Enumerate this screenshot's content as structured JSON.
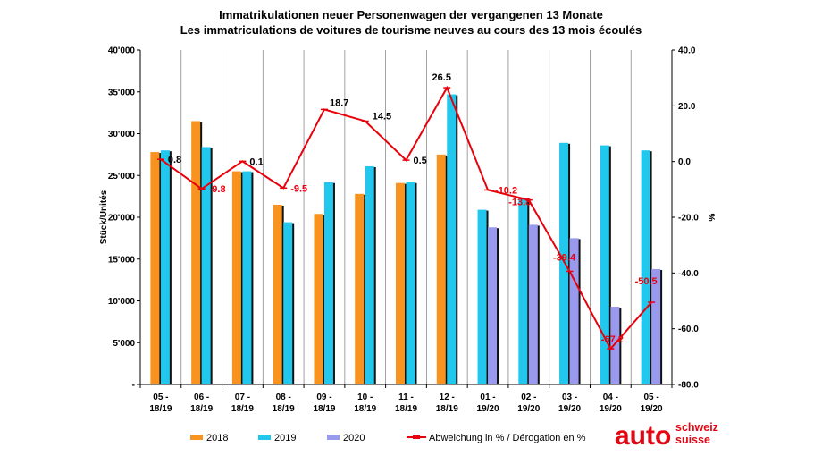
{
  "chart_data": {
    "type": "bar",
    "title": "Immatrikulationen neuer Personenwagen der vergangenen 13 Monate",
    "subtitle": "Les immatriculations de voitures de tourisme neuves au cours des 13 mois écoulés",
    "ylabel": "Stück/Unités",
    "y2label": "%",
    "ylim": [
      0,
      40000
    ],
    "y2lim": [
      -80,
      40
    ],
    "yticks": [
      "-",
      "5'000",
      "10'000",
      "15'000",
      "20'000",
      "25'000",
      "30'000",
      "35'000",
      "40'000"
    ],
    "y2ticks": [
      "-80.0",
      "-60.0",
      "-40.0",
      "-20.0",
      "0.0",
      "20.0",
      "40.0"
    ],
    "categories": [
      [
        "05 -",
        "18/19"
      ],
      [
        "06 -",
        "18/19"
      ],
      [
        "07 -",
        "18/19"
      ],
      [
        "08 -",
        "18/19"
      ],
      [
        "09 -",
        "18/19"
      ],
      [
        "10 -",
        "18/19"
      ],
      [
        "11 -",
        "18/19"
      ],
      [
        "12 -",
        "18/19"
      ],
      [
        "01 -",
        "19/20"
      ],
      [
        "02 -",
        "19/20"
      ],
      [
        "03 -",
        "19/20"
      ],
      [
        "04 -",
        "19/20"
      ],
      [
        "05 -",
        "19/20"
      ]
    ],
    "series": [
      {
        "name": "2018",
        "color": "#f7931e",
        "values": [
          27800,
          31500,
          25500,
          21500,
          20400,
          22800,
          24100,
          27500,
          null,
          null,
          null,
          null,
          null
        ]
      },
      {
        "name": "2019",
        "color": "#22c7ee",
        "values": [
          28000,
          28400,
          25500,
          19400,
          24200,
          26100,
          24200,
          34700,
          20900,
          22200,
          28900,
          28600,
          28000
        ]
      },
      {
        "name": "2020",
        "color": "#9999ee",
        "values": [
          null,
          null,
          null,
          null,
          null,
          null,
          null,
          null,
          18800,
          19100,
          17500,
          9300,
          13800
        ]
      }
    ],
    "line": {
      "name": "Abweichung in % / Dérogation en %",
      "color": "#e8000b",
      "values": [
        0.8,
        -9.8,
        0.1,
        -9.5,
        18.7,
        14.5,
        0.5,
        26.5,
        -10.2,
        -13.8,
        -39.4,
        -67.2,
        -50.5
      ],
      "labels": [
        "0.8",
        "-9.8",
        "0.1",
        "-9.5",
        "18.7",
        "14.5",
        "0.5",
        "26.5",
        "-10.2",
        "-13.8",
        "-39.4",
        "-67.2",
        "-50.5"
      ]
    },
    "grid": "vertical",
    "legend_position": "bottom"
  },
  "logo": {
    "main": "auto",
    "line1": "schweiz",
    "line2": "suisse"
  },
  "colors": {
    "accent_red": "#e30613"
  }
}
